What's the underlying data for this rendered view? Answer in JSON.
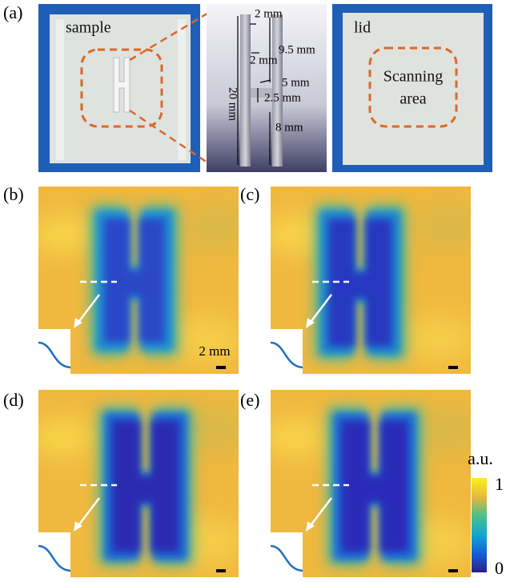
{
  "panel_labels": [
    "(a)",
    "(b)",
    "(c)",
    "(d)",
    "(e)"
  ],
  "photo_labels": {
    "sample": "sample",
    "lid": "lid",
    "scanning_area": [
      "Scanning",
      "area"
    ]
  },
  "dimensions": [
    "2 mm",
    "2 mm",
    "9.5 mm",
    "20 mm",
    "5 mm",
    "2.5 mm",
    "8 mm"
  ],
  "scale_bar": "2 mm",
  "colorbar": {
    "label": "a.u.",
    "max": "1",
    "min": "0"
  }
}
